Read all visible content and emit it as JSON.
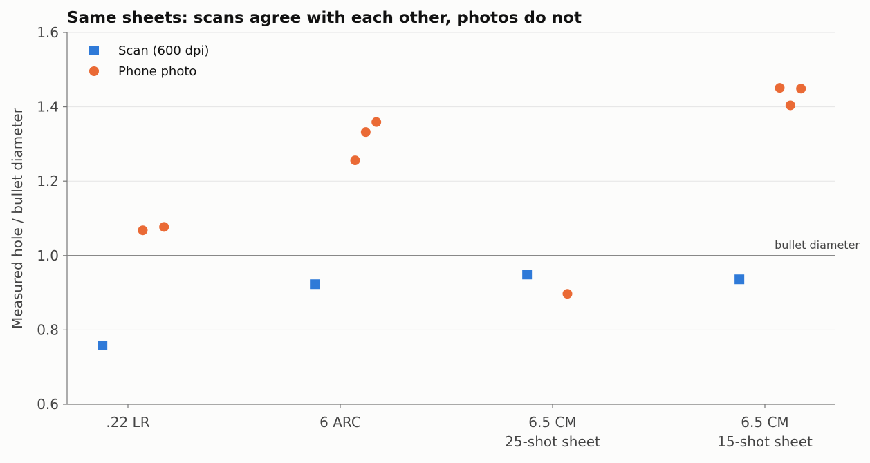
{
  "chart_data": {
    "type": "scatter",
    "title": "Same sheets: scans agree with each other, photos do not",
    "xlabel": "",
    "ylabel": "Measured hole / bullet diameter",
    "ylim": [
      0.6,
      1.6
    ],
    "yticks": [
      "0.6",
      "0.8",
      "1.0",
      "1.2",
      "1.4",
      "1.6"
    ],
    "grid": "horizontal",
    "legend_position": "top-left",
    "categories": [
      [
        ".22 LR"
      ],
      [
        "6 ARC"
      ],
      [
        "6.5 CM",
        "25-shot sheet"
      ],
      [
        "6.5 CM",
        "15-shot sheet"
      ]
    ],
    "reference_line": {
      "y": 1.0,
      "label": "bullet diameter"
    },
    "series": [
      {
        "name": "Scan (600 dpi)",
        "marker": "square",
        "color": "#2f7ad8",
        "points": [
          {
            "category": 0,
            "offset": -0.12,
            "y": 0.758
          },
          {
            "category": 1,
            "offset": -0.12,
            "y": 0.923
          },
          {
            "category": 2,
            "offset": -0.12,
            "y": 0.949
          },
          {
            "category": 3,
            "offset": -0.12,
            "y": 0.936
          }
        ]
      },
      {
        "name": "Phone photo",
        "marker": "circle",
        "color": "#ea6a35",
        "points": [
          {
            "category": 0,
            "offset": 0.07,
            "y": 1.068
          },
          {
            "category": 0,
            "offset": 0.17,
            "y": 1.077
          },
          {
            "category": 1,
            "offset": 0.07,
            "y": 1.256
          },
          {
            "category": 1,
            "offset": 0.12,
            "y": 1.332
          },
          {
            "category": 1,
            "offset": 0.17,
            "y": 1.359
          },
          {
            "category": 2,
            "offset": 0.07,
            "y": 0.897
          },
          {
            "category": 3,
            "offset": 0.07,
            "y": 1.451
          },
          {
            "category": 3,
            "offset": 0.12,
            "y": 1.404
          },
          {
            "category": 3,
            "offset": 0.17,
            "y": 1.449
          }
        ]
      }
    ]
  }
}
